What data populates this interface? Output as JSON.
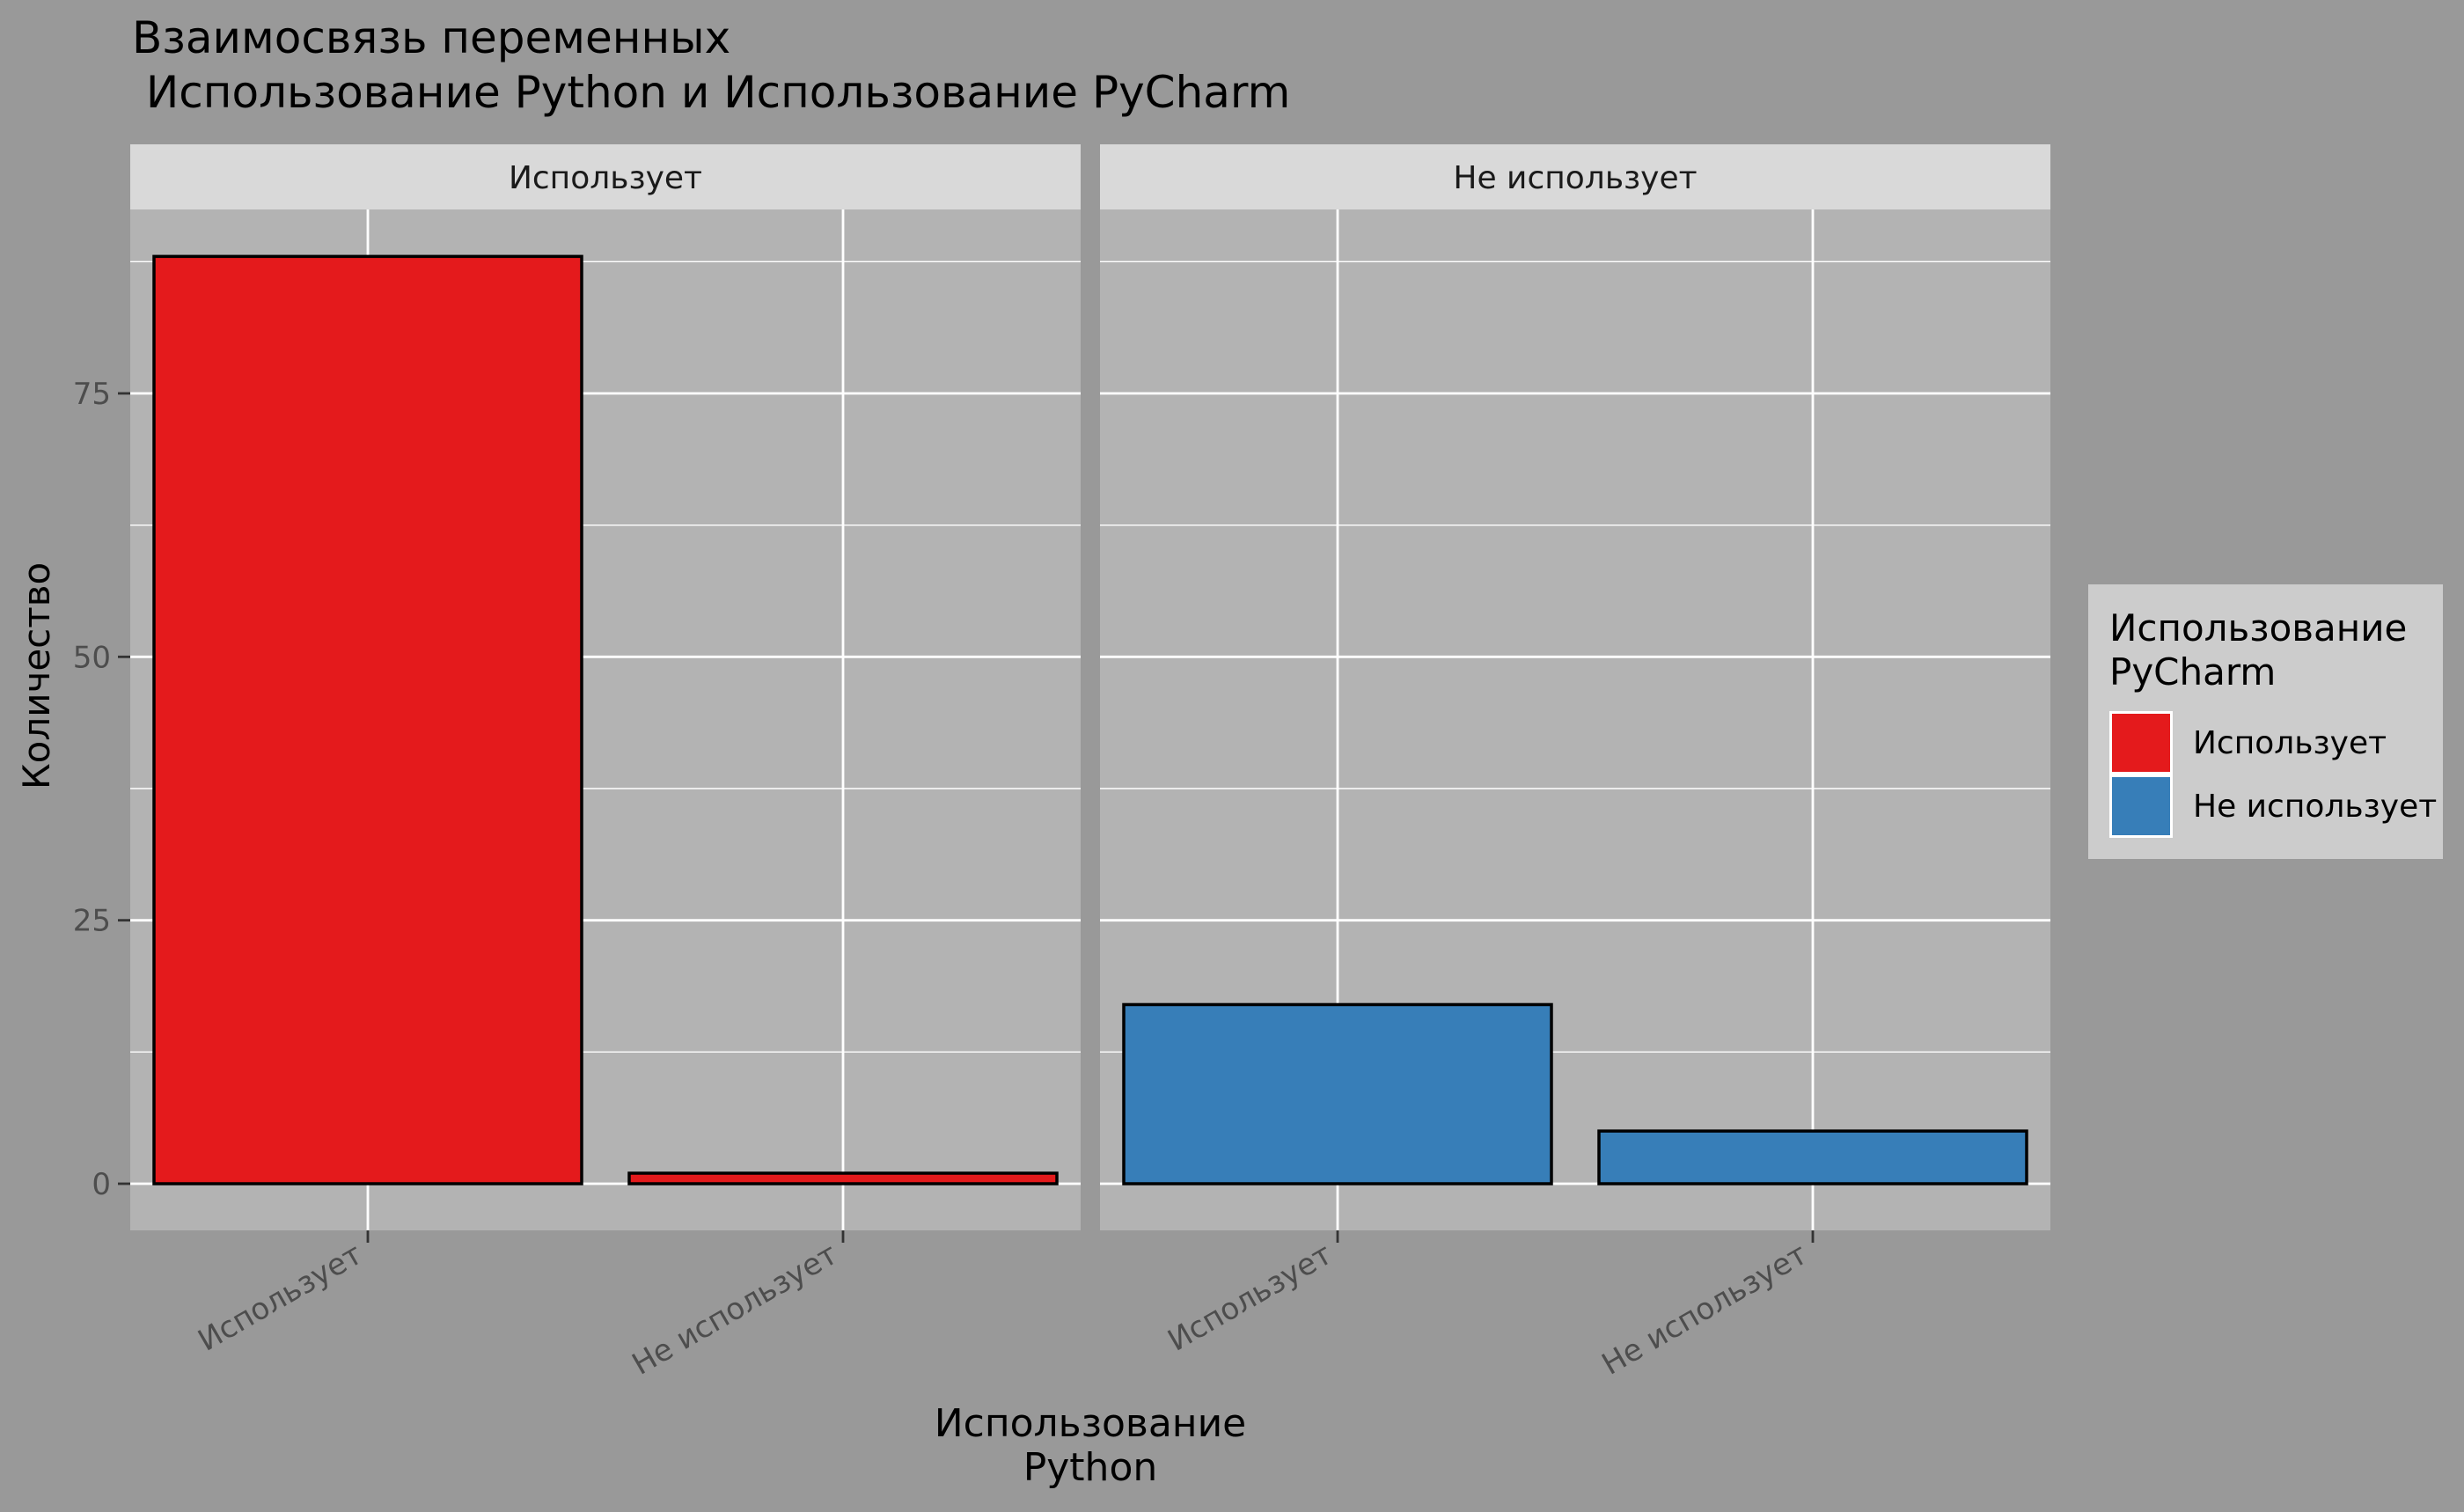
{
  "chart_data": {
    "type": "bar",
    "title": "Взаимосвязь переменных\n Использование Python и Использование PyCharm",
    "xlabel": "Использование\nPython",
    "ylabel": "Количество",
    "ylim": [
      0,
      93
    ],
    "yticks": [
      0,
      25,
      50,
      75
    ],
    "categories": [
      "Использует",
      "Не использует"
    ],
    "facets": [
      {
        "label": "Использует",
        "values": [
          88,
          1
        ]
      },
      {
        "label": "Не использует",
        "values": [
          17,
          5
        ]
      }
    ],
    "legend": {
      "title": "Использование\nPyCharm",
      "position": "right",
      "entries": [
        "Использует",
        "Не использует"
      ]
    },
    "grid": true,
    "colors": {
      "page_background": "#999999",
      "panel_background": "#b3b3b3",
      "strip_background": "#d9d9d9",
      "legend_background": "#cccccc",
      "grid": "#ffffff",
      "series": [
        "#e41a1c",
        "#377eb8"
      ]
    }
  }
}
